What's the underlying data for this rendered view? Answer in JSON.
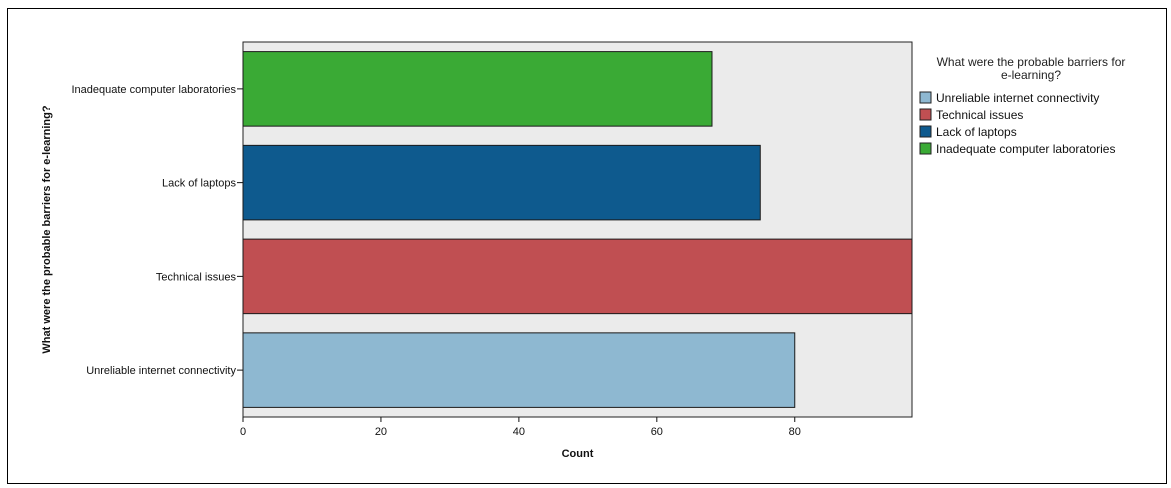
{
  "chart_data": {
    "type": "bar",
    "orientation": "horizontal",
    "categories": [
      "Inadequate computer laboratories",
      "Lack of laptops",
      "Technical issues",
      "Unreliable internet connectivity"
    ],
    "values": [
      68,
      75,
      97,
      80
    ],
    "colors": [
      "#3aaa35",
      "#0e5a8e",
      "#c04f52",
      "#8eb8d1"
    ],
    "xlabel": "Count",
    "ylabel": "What were the probable barriers for e-learning?",
    "xlim": [
      0,
      97
    ],
    "xticks": [
      0,
      20,
      40,
      60,
      80
    ],
    "grid": false,
    "plot_background": "#ebebeb",
    "legend": {
      "title_lines": [
        "What were the probable barriers for",
        "e-learning?"
      ],
      "placement": "right",
      "entries": [
        {
          "label": "Unreliable internet connectivity",
          "color": "#8eb8d1"
        },
        {
          "label": "Technical issues",
          "color": "#c04f52"
        },
        {
          "label": "Lack of laptops",
          "color": "#0e5a8e"
        },
        {
          "label": "Inadequate computer laboratories",
          "color": "#3aaa35"
        }
      ]
    }
  }
}
